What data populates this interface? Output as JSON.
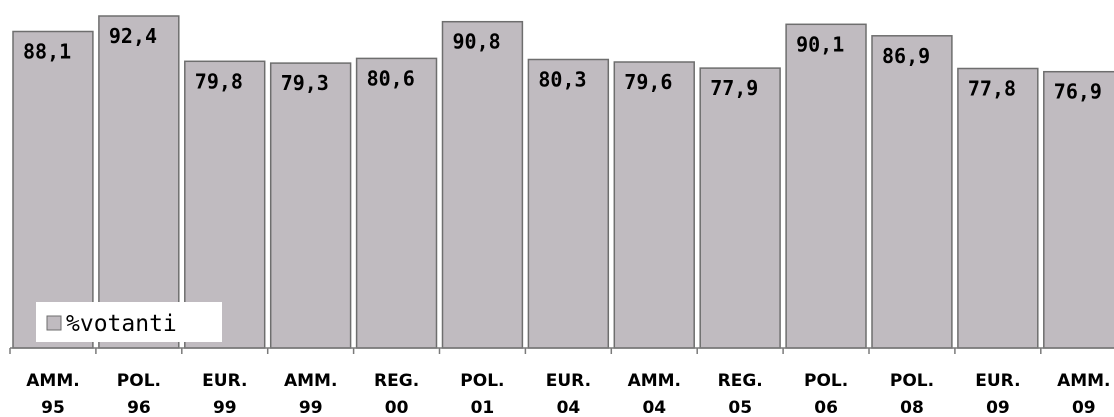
{
  "chart_data": {
    "type": "bar",
    "categories": [
      [
        "AMM.",
        "95"
      ],
      [
        "POL.",
        "96"
      ],
      [
        "EUR.",
        "99"
      ],
      [
        "AMM.",
        "99"
      ],
      [
        "REG.",
        "00"
      ],
      [
        "POL.",
        "01"
      ],
      [
        "EUR.",
        "04"
      ],
      [
        "AMM.",
        "04"
      ],
      [
        "REG.",
        "05"
      ],
      [
        "POL.",
        "06"
      ],
      [
        "POL.",
        "08"
      ],
      [
        "EUR.",
        "09"
      ],
      [
        "AMM.",
        "09"
      ]
    ],
    "series": [
      {
        "name": "%votanti",
        "values": [
          88.1,
          92.4,
          79.8,
          79.3,
          80.6,
          90.8,
          80.3,
          79.6,
          77.9,
          90.1,
          86.9,
          77.8,
          76.9
        ],
        "labels": [
          "88,1",
          "92,4",
          "79,8",
          "79,3",
          "80,6",
          "90,8",
          "80,3",
          "79,6",
          "77,9",
          "90,1",
          "86,9",
          "77,8",
          "76,9"
        ]
      }
    ],
    "legend": {
      "position": "bottom-left",
      "label": "%votanti"
    },
    "colors": {
      "bar": "#c0bbc0",
      "bar_border": "#6e6e6e",
      "axis": "#7a7a7a"
    },
    "grid": false
  }
}
